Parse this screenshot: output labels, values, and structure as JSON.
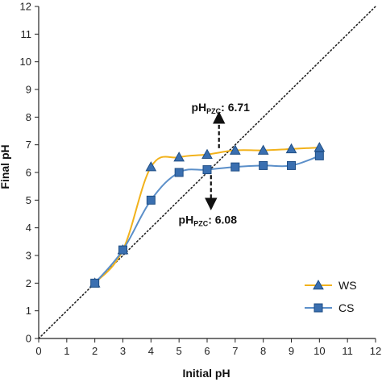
{
  "chart_data": {
    "type": "line",
    "title": "",
    "xlabel": "Initial pH",
    "ylabel": "Final pH",
    "xlim": [
      0,
      12
    ],
    "ylim": [
      0,
      12
    ],
    "xticks": [
      0,
      1,
      2,
      3,
      4,
      5,
      6,
      7,
      8,
      9,
      10,
      11,
      12
    ],
    "yticks": [
      0,
      1,
      2,
      3,
      4,
      5,
      6,
      7,
      8,
      9,
      10,
      11,
      12
    ],
    "grid": false,
    "legend": "bottom-right",
    "reference_line": {
      "style": "dotted",
      "from": [
        0,
        0
      ],
      "to": [
        12,
        12
      ]
    },
    "series": [
      {
        "name": "WS",
        "marker": "triangle",
        "line_color": "#f2b21c",
        "marker_color": "#3a6fb0",
        "x": [
          2,
          3,
          4,
          5,
          6,
          7,
          8,
          9,
          10
        ],
        "y": [
          2.0,
          3.2,
          6.2,
          6.55,
          6.65,
          6.8,
          6.8,
          6.85,
          6.9
        ]
      },
      {
        "name": "CS",
        "marker": "square",
        "line_color": "#5b8fc9",
        "marker_color": "#3a6fb0",
        "x": [
          2,
          3,
          4,
          5,
          6,
          7,
          8,
          9,
          10
        ],
        "y": [
          2.0,
          3.2,
          5.0,
          6.0,
          6.1,
          6.2,
          6.25,
          6.25,
          6.6
        ]
      }
    ],
    "annotations": [
      {
        "id": "pzc-ws",
        "prefix": "pH",
        "subscript": "PZC",
        "value_text": ": 6.71",
        "x": 6.71,
        "y": 6.82,
        "direction": "up"
      },
      {
        "id": "pzc-cs",
        "prefix": "pH",
        "subscript": "PZC",
        "value_text": ": 6.08",
        "x": 6.08,
        "y": 6.08,
        "direction": "down"
      }
    ]
  }
}
